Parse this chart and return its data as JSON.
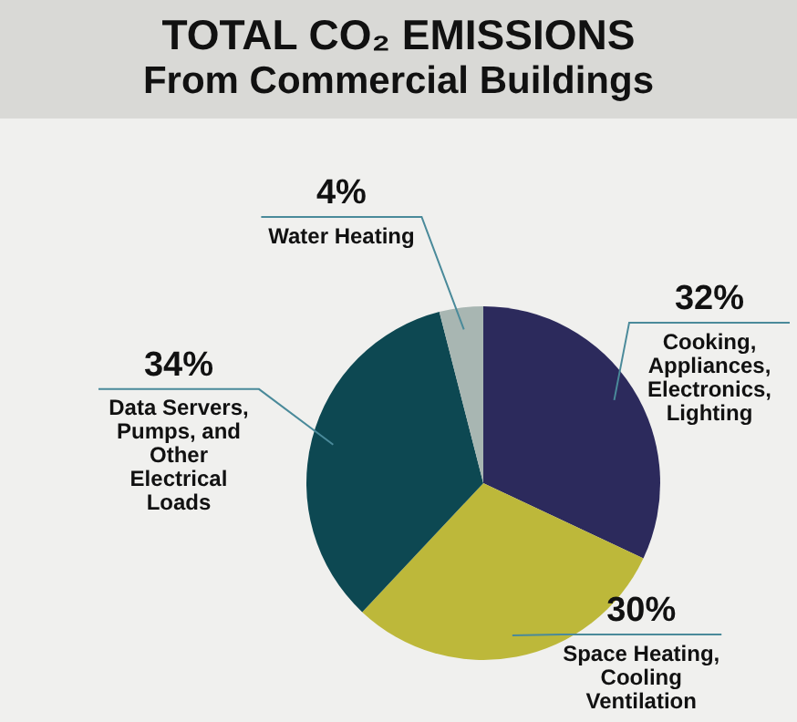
{
  "chart_data": {
    "type": "pie",
    "title": "TOTAL CO₂ EMISSIONS",
    "subtitle": "From Commercial Buildings",
    "categories": [
      "Cooking, Appliances, Electronics, Lighting",
      "Space Heating, Cooling Ventilation",
      "Data Servers, Pumps, and Other Electrical Loads",
      "Water Heating"
    ],
    "values": [
      32,
      30,
      34,
      4
    ],
    "value_labels": [
      "32%",
      "30%",
      "34%",
      "4%"
    ],
    "colors": [
      "#2c2a5c",
      "#bdb83a",
      "#0d4852",
      "#a8b6b2"
    ],
    "legend": false
  }
}
